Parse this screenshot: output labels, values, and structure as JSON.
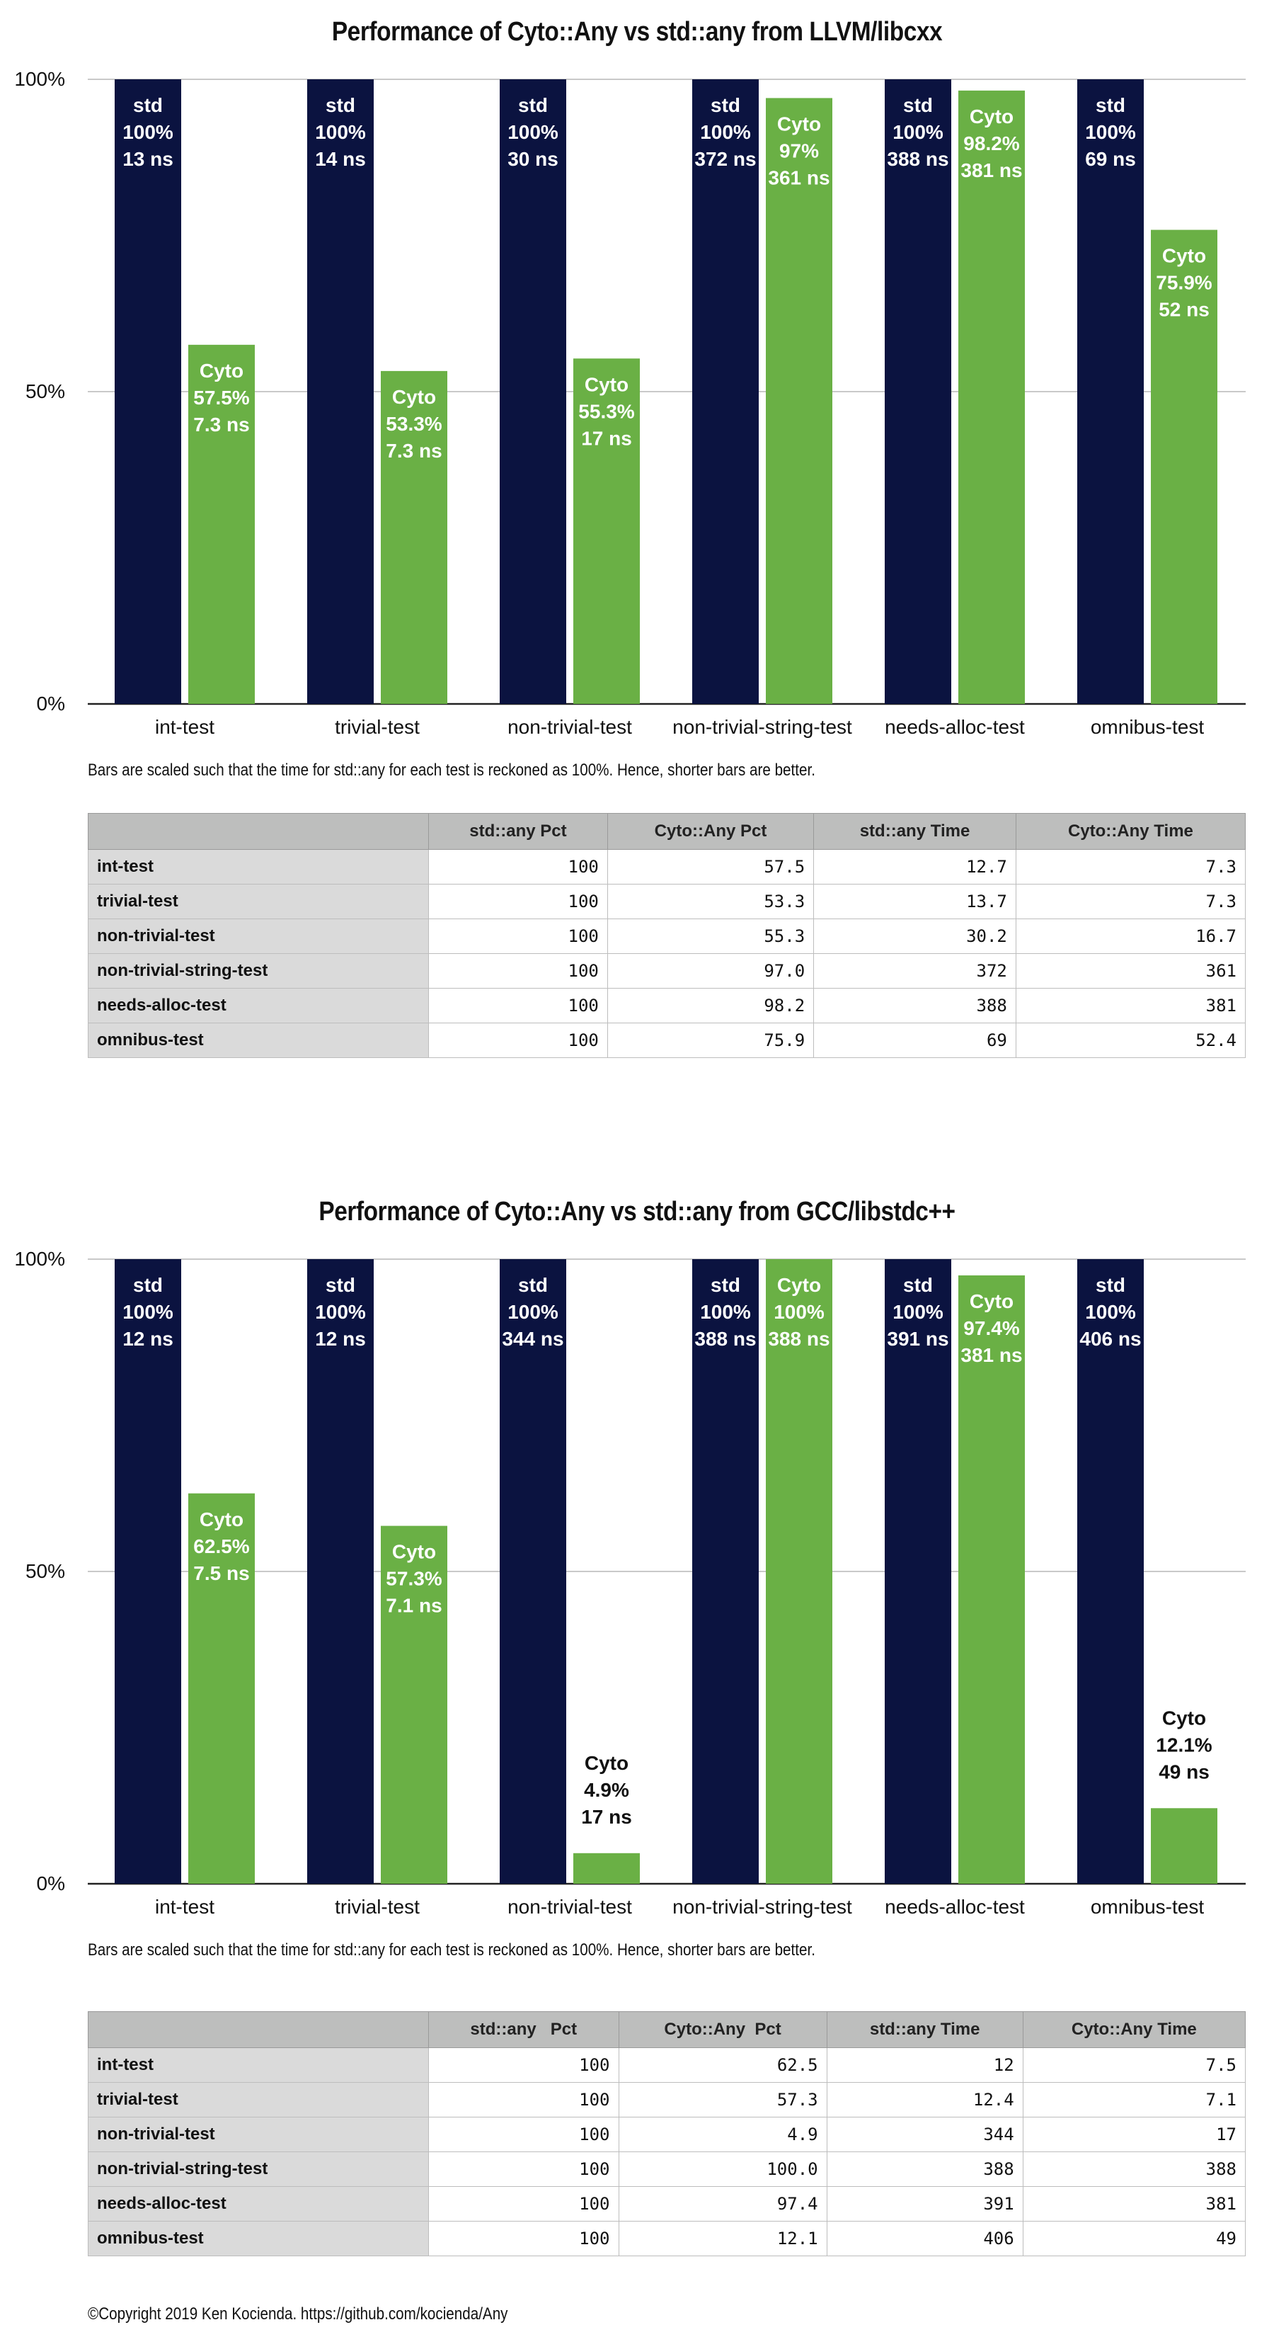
{
  "colors": {
    "std": "#0b1340",
    "cyto": "#6ab045",
    "grid": "#c9c9c9",
    "axis": "#222222"
  },
  "chart_data": [
    {
      "type": "bar",
      "title": "Performance of Cyto::Any vs std::any from LLVM/libcxx",
      "categories": [
        "int-test",
        "trivial-test",
        "non-trivial-test",
        "non-trivial-string-test",
        "needs-alloc-test",
        "omnibus-test"
      ],
      "yticks": [
        "0%",
        "50%",
        "100%"
      ],
      "ylim": [
        0,
        100
      ],
      "grid": true,
      "series": [
        {
          "name": "std",
          "values": [
            100,
            100,
            100,
            100,
            100,
            100
          ],
          "labels": [
            "std|100%|13 ns",
            "std|100%|14 ns",
            "std|100%|30 ns",
            "std|100%|372 ns",
            "std|100%|388 ns",
            "std|100%|69 ns"
          ]
        },
        {
          "name": "Cyto",
          "values": [
            57.5,
            53.3,
            55.3,
            97.0,
            98.2,
            75.9
          ],
          "labels": [
            "Cyto|57.5%|7.3 ns",
            "Cyto|53.3%|7.3 ns",
            "Cyto|55.3%|17 ns",
            "Cyto|97%|361 ns",
            "Cyto|98.2%|381 ns",
            "Cyto|75.9%|52 ns"
          ]
        }
      ],
      "caption": "Bars are scaled such that the time for std::any for each test is reckoned as 100%. Hence, shorter bars are better.",
      "table": {
        "headers": [
          "",
          "std::any Pct",
          "Cyto::Any Pct",
          "std::any Time",
          "Cyto::Any Time"
        ],
        "rows": [
          [
            "int-test",
            "100",
            "57.5",
            "12.7",
            "7.3"
          ],
          [
            "trivial-test",
            "100",
            "53.3",
            "13.7",
            "7.3"
          ],
          [
            "non-trivial-test",
            "100",
            "55.3",
            "30.2",
            "16.7"
          ],
          [
            "non-trivial-string-test",
            "100",
            "97.0",
            "372",
            "361"
          ],
          [
            "needs-alloc-test",
            "100",
            "98.2",
            "388",
            "381"
          ],
          [
            "omnibus-test",
            "100",
            "75.9",
            "69",
            "52.4"
          ]
        ]
      }
    },
    {
      "type": "bar",
      "title": "Performance of Cyto::Any vs std::any from GCC/libstdc++",
      "categories": [
        "int-test",
        "trivial-test",
        "non-trivial-test",
        "non-trivial-string-test",
        "needs-alloc-test",
        "omnibus-test"
      ],
      "yticks": [
        "0%",
        "50%",
        "100%"
      ],
      "ylim": [
        0,
        100
      ],
      "grid": true,
      "series": [
        {
          "name": "std",
          "values": [
            100,
            100,
            100,
            100,
            100,
            100
          ],
          "labels": [
            "std|100%|12 ns",
            "std|100%|12 ns",
            "std|100%|344 ns",
            "std|100%|388 ns",
            "std|100%|391 ns",
            "std|100%|406 ns"
          ]
        },
        {
          "name": "Cyto",
          "values": [
            62.5,
            57.3,
            4.9,
            100.0,
            97.4,
            12.1
          ],
          "labels": [
            "Cyto|62.5%|7.5 ns",
            "Cyto|57.3%|7.1 ns",
            "Cyto|4.9%|17 ns",
            "Cyto|100%|388 ns",
            "Cyto|97.4%|381 ns",
            "Cyto|12.1%|49 ns"
          ]
        }
      ],
      "caption": "Bars are scaled such that the time for std::any for each test is reckoned as 100%. Hence, shorter bars are better.",
      "table": {
        "headers": [
          "",
          "std::any   Pct",
          "Cyto::Any  Pct",
          "std::any Time",
          "Cyto::Any Time"
        ],
        "rows": [
          [
            "int-test",
            "100",
            "62.5",
            "12",
            "7.5"
          ],
          [
            "trivial-test",
            "100",
            "57.3",
            "12.4",
            "7.1"
          ],
          [
            "non-trivial-test",
            "100",
            "4.9",
            "344",
            "17"
          ],
          [
            "non-trivial-string-test",
            "100",
            "100.0",
            "388",
            "388"
          ],
          [
            "needs-alloc-test",
            "100",
            "97.4",
            "391",
            "381"
          ],
          [
            "omnibus-test",
            "100",
            "12.1",
            "406",
            "49"
          ]
        ]
      }
    }
  ],
  "footer": "©Copyright 2019 Ken Kocienda. https://github.com/kocienda/Any"
}
